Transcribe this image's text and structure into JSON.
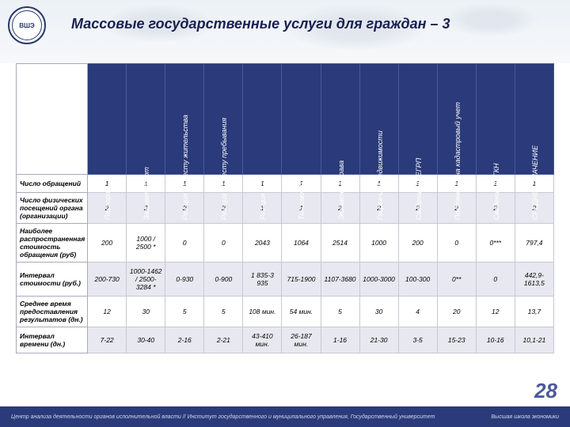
{
  "title": "Массовые государственные услуги для граждан – 3",
  "page_number": "28",
  "footer_left": "Центр анализа деятельности органов исполнительной власти // Институт государственного и муниципального управления, Государственный университет",
  "footer_right": "Высшая школа экономики",
  "columns": [
    "Паспорт",
    "Загранпаспорт",
    "Рег-ция по месту жительства",
    "Рег-ция по месту пребывания",
    "Рег-ция ТС",
    "Техосмотр",
    "Экзамен на права",
    "Госрег-ция недвижимости",
    "Сведения из ЕГРП",
    "Постановка на кадастровый учет",
    "Сведения из ГКН",
    "СРЕДНЕЕ ЗНАЧЕНИЕ"
  ],
  "row_headers": [
    "Число обращений",
    "Число физических посещений органа (организации)",
    "Наиболее распространенная стоимость обращения (руб)",
    "Интервал стоимости (руб.)",
    "Среднее время предоставления результатов (дн.)",
    "Интервал времени (дн.)"
  ],
  "rows": [
    [
      "1",
      "1",
      "1",
      "1",
      "1",
      "1",
      "1",
      "1",
      "1",
      "1",
      "1",
      "1"
    ],
    [
      "2",
      "2",
      "2",
      "2",
      "1",
      "1",
      "2",
      "2",
      "2",
      "2",
      "2",
      "2"
    ],
    [
      "200",
      "1000 / 2500 *",
      "0",
      "0",
      "2043",
      "1064",
      "2514",
      "1000",
      "200",
      "0",
      "0***",
      "797,4"
    ],
    [
      "200-730",
      "1000-1462 / 2500-3284 *",
      "0-930",
      "0-900",
      "1 835-3 935",
      "715-1900",
      "1107-3680",
      "1000-3000",
      "100-300",
      "0**",
      "0",
      "442,9-1613,5"
    ],
    [
      "12",
      "30",
      "5",
      "5",
      "108 мин.",
      "54 мин.",
      "5",
      "30",
      "4",
      "20",
      "12",
      "13,7"
    ],
    [
      "7-22",
      "30-40",
      "2-16",
      "2-21",
      "43-410 мин.",
      "26-187 мин.",
      "1-16",
      "21-30",
      "3-5",
      "15-23",
      "10-16",
      "10,1-21"
    ]
  ],
  "colors": {
    "header_bg": "#2a3a7a",
    "header_text": "#ffffff",
    "row_even": "#e8e8f0",
    "row_odd": "#ffffff",
    "title_color": "#1a2050",
    "pagenum_color": "#4a5a9a"
  }
}
